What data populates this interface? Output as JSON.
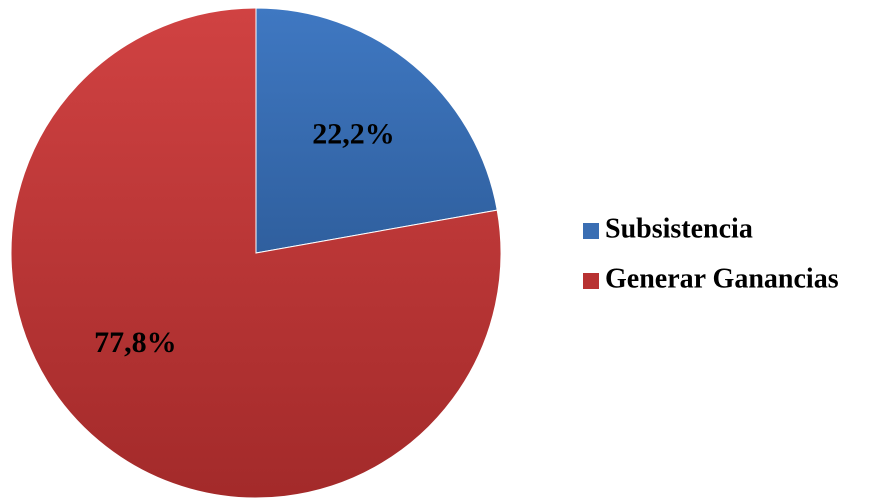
{
  "chart_data": {
    "type": "pie",
    "title": "",
    "legend_position": "right",
    "slices": [
      {
        "label": "Subsistencia",
        "value": 22.2,
        "display": "22,2%",
        "color": "#3a6eb3"
      },
      {
        "label": "Generar Ganancias",
        "value": 77.8,
        "display": "77,8%",
        "color": "#b83232"
      }
    ]
  }
}
